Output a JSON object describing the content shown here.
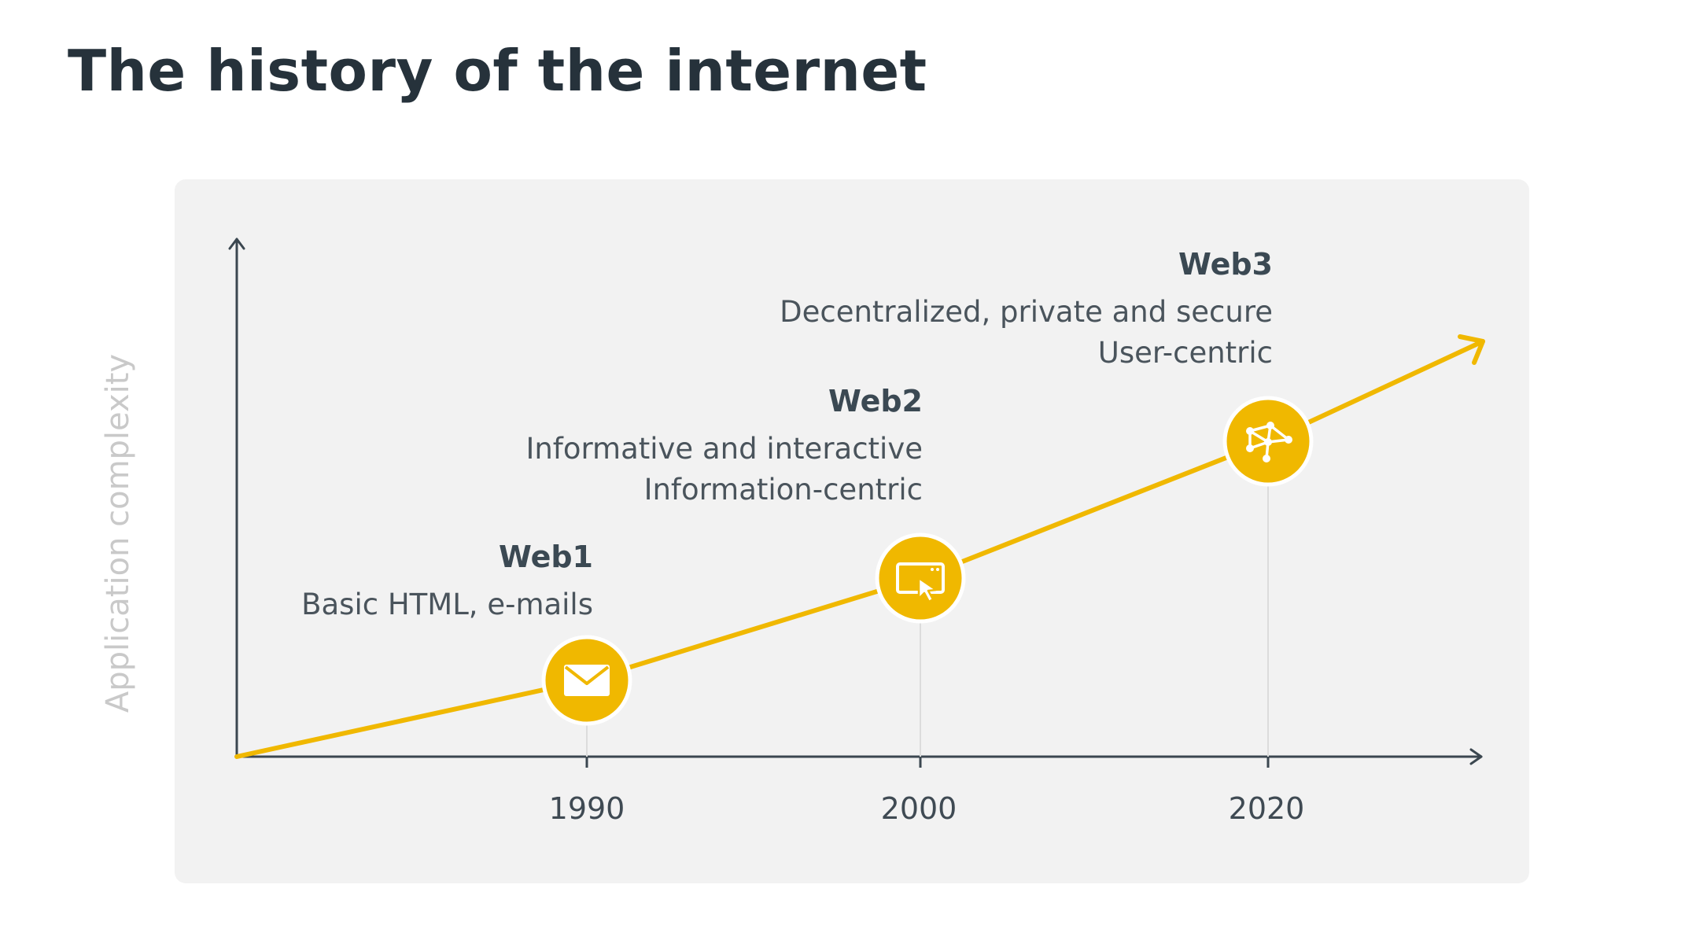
{
  "title": "The history of the internet",
  "y_axis_label": "Application complexity",
  "colors": {
    "accent": "#f0b800",
    "axis": "#3b4750",
    "panel": "#f2f2f2",
    "title": "#26323b"
  },
  "eras": [
    {
      "name": "Web1",
      "year": "1990",
      "icon": "envelope-icon",
      "lines": [
        "Basic HTML, e-mails"
      ]
    },
    {
      "name": "Web2",
      "year": "2000",
      "icon": "browser-window-cursor-icon",
      "lines": [
        "Informative and interactive",
        "Information-centric"
      ]
    },
    {
      "name": "Web3",
      "year": "2020",
      "icon": "network-nodes-icon",
      "lines": [
        "Decentralized, private and secure",
        "User-centric"
      ]
    }
  ]
}
